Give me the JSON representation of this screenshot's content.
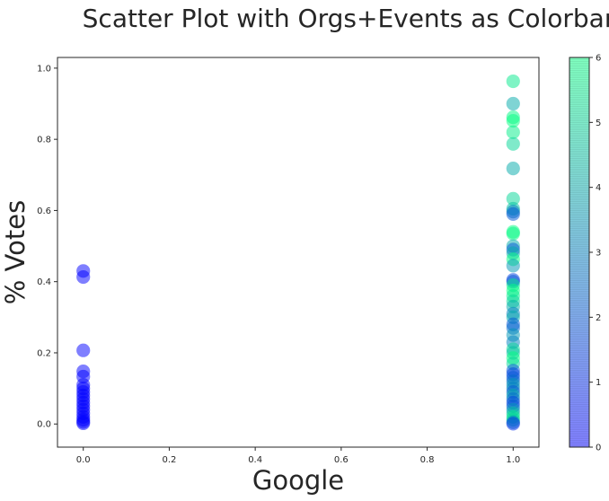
{
  "chart_data": {
    "type": "scatter",
    "title": "Scatter Plot with Orgs+Events as Colorbar",
    "xlabel": "Google",
    "ylabel": "% Votes",
    "xlim": [
      -0.06,
      1.06
    ],
    "ylim": [
      -0.065,
      1.03
    ],
    "xticks": [
      "0.0",
      "0.2",
      "0.4",
      "0.6",
      "0.8",
      "1.0"
    ],
    "yticks": [
      "0.0",
      "0.2",
      "0.4",
      "0.6",
      "0.8",
      "1.0"
    ],
    "grid": false,
    "colorbar": {
      "range": [
        0,
        6
      ],
      "ticks": [
        "0",
        "1",
        "2",
        "3",
        "4",
        "5",
        "6"
      ],
      "colormap": "winter",
      "color_low": "#0000ff",
      "color_high": "#00ff80",
      "alpha": 0.5
    },
    "points": [
      {
        "x": 0,
        "y": 0.43,
        "c": 0
      },
      {
        "x": 0,
        "y": 0.413,
        "c": 0
      },
      {
        "x": 0,
        "y": 0.207,
        "c": 0
      },
      {
        "x": 0,
        "y": 0.148,
        "c": 0
      },
      {
        "x": 0,
        "y": 0.133,
        "c": 0
      },
      {
        "x": 0,
        "y": 0.11,
        "c": 0
      },
      {
        "x": 0,
        "y": 0.1,
        "c": 0
      },
      {
        "x": 0,
        "y": 0.09,
        "c": 0
      },
      {
        "x": 0,
        "y": 0.08,
        "c": 0
      },
      {
        "x": 0,
        "y": 0.07,
        "c": 0
      },
      {
        "x": 0,
        "y": 0.06,
        "c": 0
      },
      {
        "x": 0,
        "y": 0.05,
        "c": 0
      },
      {
        "x": 0,
        "y": 0.04,
        "c": 0
      },
      {
        "x": 0,
        "y": 0.03,
        "c": 0
      },
      {
        "x": 0,
        "y": 0.02,
        "c": 0
      },
      {
        "x": 0,
        "y": 0.012,
        "c": 0
      },
      {
        "x": 0,
        "y": 0.006,
        "c": 0
      },
      {
        "x": 0,
        "y": 0.002,
        "c": 0
      },
      {
        "x": 1,
        "y": 0.963,
        "c": 5.5
      },
      {
        "x": 1,
        "y": 0.9,
        "c": 4
      },
      {
        "x": 1,
        "y": 0.862,
        "c": 5.8
      },
      {
        "x": 1,
        "y": 0.852,
        "c": 6
      },
      {
        "x": 1,
        "y": 0.82,
        "c": 5.6
      },
      {
        "x": 1,
        "y": 0.787,
        "c": 5
      },
      {
        "x": 1,
        "y": 0.718,
        "c": 4
      },
      {
        "x": 1,
        "y": 0.633,
        "c": 5
      },
      {
        "x": 1,
        "y": 0.605,
        "c": 4.5
      },
      {
        "x": 1,
        "y": 0.597,
        "c": 3
      },
      {
        "x": 1,
        "y": 0.59,
        "c": 2
      },
      {
        "x": 1,
        "y": 0.54,
        "c": 6
      },
      {
        "x": 1,
        "y": 0.535,
        "c": 5.8
      },
      {
        "x": 1,
        "y": 0.5,
        "c": 4
      },
      {
        "x": 1,
        "y": 0.49,
        "c": 2
      },
      {
        "x": 1,
        "y": 0.48,
        "c": 4
      },
      {
        "x": 1,
        "y": 0.463,
        "c": 6
      },
      {
        "x": 1,
        "y": 0.445,
        "c": 3.5
      },
      {
        "x": 1,
        "y": 0.405,
        "c": 1.5
      },
      {
        "x": 1,
        "y": 0.4,
        "c": 2
      },
      {
        "x": 1,
        "y": 0.39,
        "c": 5.5
      },
      {
        "x": 1,
        "y": 0.375,
        "c": 6
      },
      {
        "x": 1,
        "y": 0.36,
        "c": 5.5
      },
      {
        "x": 1,
        "y": 0.345,
        "c": 5
      },
      {
        "x": 1,
        "y": 0.33,
        "c": 4
      },
      {
        "x": 1,
        "y": 0.31,
        "c": 3
      },
      {
        "x": 1,
        "y": 0.3,
        "c": 4
      },
      {
        "x": 1,
        "y": 0.28,
        "c": 2
      },
      {
        "x": 1,
        "y": 0.27,
        "c": 2.5
      },
      {
        "x": 1,
        "y": 0.25,
        "c": 3.5
      },
      {
        "x": 1,
        "y": 0.23,
        "c": 3
      },
      {
        "x": 1,
        "y": 0.21,
        "c": 5
      },
      {
        "x": 1,
        "y": 0.2,
        "c": 4.5
      },
      {
        "x": 1,
        "y": 0.185,
        "c": 6
      },
      {
        "x": 1,
        "y": 0.17,
        "c": 5
      },
      {
        "x": 1,
        "y": 0.15,
        "c": 2
      },
      {
        "x": 1,
        "y": 0.14,
        "c": 1.5
      },
      {
        "x": 1,
        "y": 0.13,
        "c": 2
      },
      {
        "x": 1,
        "y": 0.12,
        "c": 2.5
      },
      {
        "x": 1,
        "y": 0.11,
        "c": 3.5
      },
      {
        "x": 1,
        "y": 0.1,
        "c": 3
      },
      {
        "x": 1,
        "y": 0.09,
        "c": 2
      },
      {
        "x": 1,
        "y": 0.08,
        "c": 4
      },
      {
        "x": 1,
        "y": 0.07,
        "c": 2.5
      },
      {
        "x": 1,
        "y": 0.06,
        "c": 1.5
      },
      {
        "x": 1,
        "y": 0.05,
        "c": 2
      },
      {
        "x": 1,
        "y": 0.04,
        "c": 3.5
      },
      {
        "x": 1,
        "y": 0.03,
        "c": 4.5
      },
      {
        "x": 1,
        "y": 0.02,
        "c": 5.5
      },
      {
        "x": 1,
        "y": 0.012,
        "c": 5
      },
      {
        "x": 1,
        "y": 0.005,
        "c": 3
      },
      {
        "x": 1,
        "y": 0.001,
        "c": 1
      }
    ]
  }
}
